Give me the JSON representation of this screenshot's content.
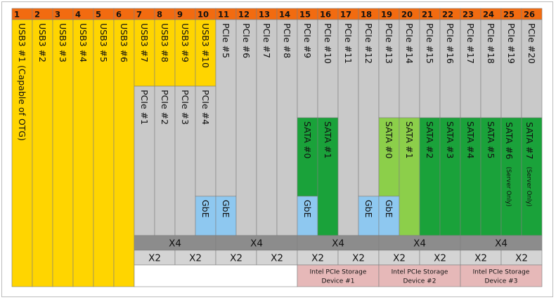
{
  "ports": [
    "1",
    "2",
    "3",
    "4",
    "5",
    "6",
    "7",
    "8",
    "9",
    "10",
    "11",
    "12",
    "13",
    "14",
    "15",
    "16",
    "17",
    "18",
    "19",
    "20",
    "21",
    "22",
    "23",
    "24",
    "25",
    "26"
  ],
  "colors": {
    "header": "#f26b10",
    "usb": "#ffd500",
    "pcie": "#c9c9c9",
    "sata_dark": "#1aa23a",
    "sata_light": "#8ccf4a",
    "gbe": "#8ec8f0",
    "bar": "#8c8c8c",
    "storage": "#e6b8b8",
    "white": "#ffffff"
  },
  "lanes": [
    [
      "USB3 #1 (Capable of OTG)"
    ],
    [
      "USB3 #2"
    ],
    [
      "USB3 #3"
    ],
    [
      "USB3 #4"
    ],
    [
      "USB3 #5"
    ],
    [
      "USB3 #6"
    ],
    [
      "USB3 #7",
      "PCIe #1"
    ],
    [
      "USB3 #8",
      "PCIe #2"
    ],
    [
      "USB3 #9",
      "PCIe #3"
    ],
    [
      "USB3 #10",
      "PCIe #4",
      "GbE"
    ],
    [
      "PCIe #5",
      "GbE"
    ],
    [
      "PCIe #6"
    ],
    [
      "PCIe #7"
    ],
    [
      "PCIe #8"
    ],
    [
      "PCIe #9",
      "SATA #0",
      "GbE"
    ],
    [
      "PCIe #10",
      "SATA #1"
    ],
    [
      "PCIe #11"
    ],
    [
      "PCIe #12",
      "GbE"
    ],
    [
      "PCIe #13",
      "SATA #0",
      "GbE"
    ],
    [
      "PCIe #14",
      "SATA #1"
    ],
    [
      "PCIe #15",
      "SATA #2"
    ],
    [
      "PCIe #16",
      "SATA #3"
    ],
    [
      "PCIe #17",
      "SATA #4"
    ],
    [
      "PCIe #18",
      "SATA #5"
    ],
    [
      "PCIe #19",
      "SATA #6",
      "(Server Only)"
    ],
    [
      "PCIe #20",
      "SATA #7",
      "(Server Only)"
    ]
  ],
  "x4_label": "X4",
  "x2_label": "X2",
  "storage_devices": [
    [
      "Intel PCIe Storage",
      "Device #1"
    ],
    [
      "Intel PCIe Storage",
      "Device #2"
    ],
    [
      "Intel PCIe Storage",
      "Device #3"
    ]
  ]
}
